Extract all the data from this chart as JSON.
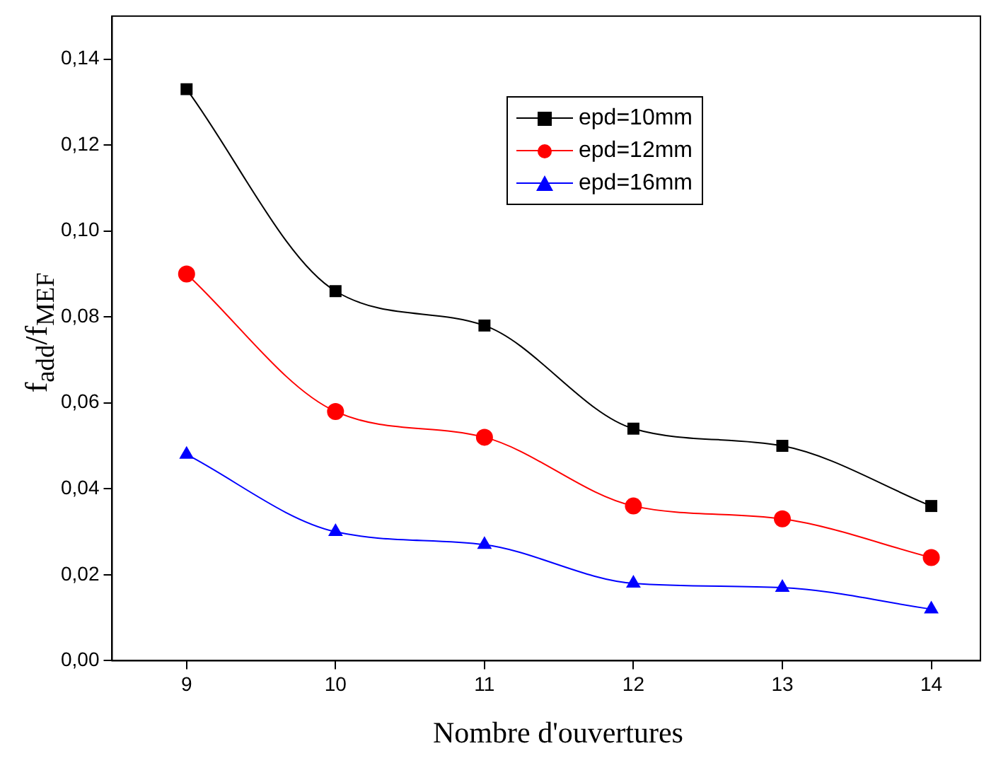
{
  "chart_data": {
    "type": "line",
    "xlabel": "Nombre d'ouvertures",
    "ylabel": "f$_{add}$/f$_{MEF}$",
    "x": [
      9,
      10,
      11,
      12,
      13,
      14
    ],
    "series": [
      {
        "name": "epd=10mm",
        "color": "#000000",
        "marker": "square",
        "values": [
          0.133,
          0.086,
          0.078,
          0.054,
          0.05,
          0.036
        ]
      },
      {
        "name": "epd=12mm",
        "color": "#ff0000",
        "marker": "circle",
        "values": [
          0.09,
          0.058,
          0.052,
          0.036,
          0.033,
          0.024
        ]
      },
      {
        "name": "epd=16mm",
        "color": "#0000ff",
        "marker": "triangle",
        "values": [
          0.048,
          0.03,
          0.027,
          0.018,
          0.017,
          0.012
        ]
      }
    ],
    "xlim": [
      8.5,
      14.33
    ],
    "xticks": [
      9,
      10,
      11,
      12,
      13,
      14
    ],
    "ylim": [
      0,
      0.15
    ],
    "yticks": [
      {
        "value": 0,
        "label": "0,00"
      },
      {
        "value": 0.02,
        "label": "0,02"
      },
      {
        "value": 0.04,
        "label": "0,04"
      },
      {
        "value": 0.06,
        "label": "0,06"
      },
      {
        "value": 0.08,
        "label": "0,08"
      },
      {
        "value": 0.1,
        "label": "0,10"
      },
      {
        "value": 0.12,
        "label": "0,12"
      },
      {
        "value": 0.14,
        "label": "0,14"
      }
    ],
    "grid": false,
    "legend": "top right",
    "line_style": "solid"
  }
}
